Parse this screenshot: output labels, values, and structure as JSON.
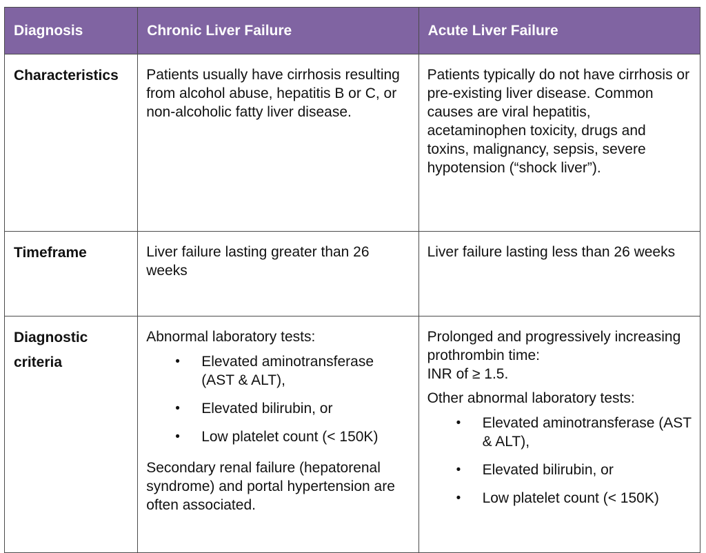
{
  "header": {
    "col1": "Diagnosis",
    "col2": "Chronic Liver Failure",
    "col3": "Acute Liver Failure"
  },
  "rows": [
    {
      "label": "Characteristics",
      "chronic": "Patients usually have cirrhosis resulting from alcohol abuse, hepatitis B or C, or non-alcoholic fatty liver disease.",
      "acute": "Patients typically do not have cirrhosis or pre-existing liver disease. Common causes are viral hepatitis, acetaminophen toxicity, drugs and toxins, malignancy, sepsis, severe hypotension (“shock liver”)."
    },
    {
      "label": "Timeframe",
      "chronic": "Liver failure lasting greater than 26 weeks",
      "acute": "Liver failure lasting less than 26 weeks"
    },
    {
      "label": "Diagnostic criteria",
      "chronic": {
        "intro": "Abnormal laboratory tests:",
        "bullets": [
          "Elevated aminotransferase (AST & ALT),",
          "Elevated bilirubin, or",
          "Low platelet count (< 150K)"
        ],
        "outro": "Secondary renal failure (hepatorenal syndrome) and portal hypertension are often associated."
      },
      "acute": {
        "intro1": "Prolonged and progressively increasing prothrombin time:",
        "intro1b": "INR of ≥ 1.5.",
        "intro2": "Other abnormal laboratory tests:",
        "bullets": [
          "Elevated aminotransferase (AST & ALT),",
          "Elevated bilirubin, or",
          "Low platelet count (< 150K)"
        ]
      }
    }
  ],
  "bullet_glyph": "•",
  "colors": {
    "header_bg": "#8064a2",
    "header_text": "#ffffff",
    "border": "#4a4a4a"
  }
}
